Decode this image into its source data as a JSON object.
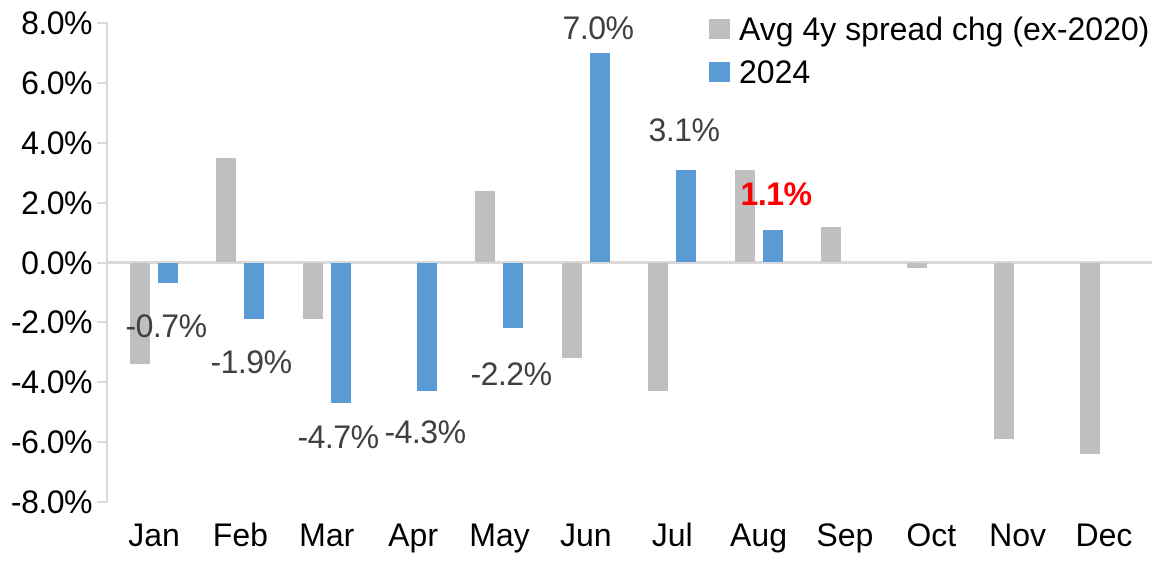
{
  "chart_data": {
    "type": "bar",
    "title": "",
    "xlabel": "",
    "ylabel": "",
    "categories": [
      "Jan",
      "Feb",
      "Mar",
      "Apr",
      "May",
      "Jun",
      "Jul",
      "Aug",
      "Sep",
      "Oct",
      "Nov",
      "Dec"
    ],
    "series": [
      {
        "name": "Avg 4y spread chg (ex-2020)",
        "color": "#BFBFBF",
        "values": [
          -3.4,
          3.5,
          -1.9,
          0.0,
          2.4,
          -3.2,
          -4.3,
          3.1,
          1.2,
          -0.2,
          -5.9,
          -6.4
        ]
      },
      {
        "name": "2024",
        "color": "#5B9BD5",
        "values": [
          -0.7,
          -1.9,
          -4.7,
          -4.3,
          -2.2,
          7.0,
          3.1,
          1.1,
          null,
          null,
          null,
          null
        ]
      }
    ],
    "data_labels": [
      {
        "month": "Jan",
        "text": "-0.7%",
        "color": "#404040",
        "bold": false
      },
      {
        "month": "Feb",
        "text": "-1.9%",
        "color": "#404040",
        "bold": false
      },
      {
        "month": "Mar",
        "text": "-4.7%",
        "color": "#404040",
        "bold": false
      },
      {
        "month": "Apr",
        "text": "-4.3%",
        "color": "#404040",
        "bold": false
      },
      {
        "month": "May",
        "text": "-2.2%",
        "color": "#404040",
        "bold": false
      },
      {
        "month": "Jun",
        "text": "7.0%",
        "color": "#404040",
        "bold": false
      },
      {
        "month": "Jul",
        "text": "3.1%",
        "color": "#404040",
        "bold": false
      },
      {
        "month": "Aug",
        "text": "1.1%",
        "color": "#FF0000",
        "bold": true
      }
    ],
    "y_axis": {
      "tick_labels": [
        "8.0%",
        "6.0%",
        "4.0%",
        "2.0%",
        "0.0%",
        "-2.0%",
        "-4.0%",
        "-6.0%",
        "-8.0%"
      ],
      "tick_values": [
        8,
        6,
        4,
        2,
        0,
        -2,
        -4,
        -6,
        -8
      ],
      "min": -8,
      "max": 8
    },
    "legend_position": "top-right",
    "grid": false,
    "colors": {
      "axis_line": "#D9D9D9",
      "axis_text": "#000000",
      "data_label_default": "#404040",
      "data_label_emphasis": "#FF0000"
    }
  }
}
